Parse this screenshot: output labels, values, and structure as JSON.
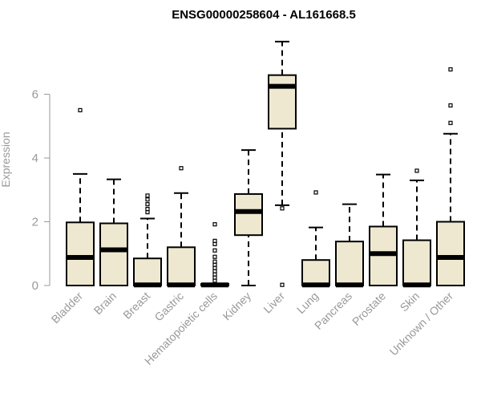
{
  "chart_data": {
    "type": "box",
    "title": "ENSG00000258604 - AL161668.5",
    "ylabel": "Expression",
    "xlabel": "",
    "ylim": [
      0,
      7.9
    ],
    "yticks": [
      0,
      2,
      4,
      6
    ],
    "grid": false,
    "box_fill": "#EEE8D0",
    "stroke_color": "#000000",
    "label_color": "#999999",
    "categories": [
      "Bladder",
      "Brain",
      "Breast",
      "Gastric",
      "Hematopoietic cells",
      "Kidney",
      "Liver",
      "Lung",
      "Pancreas",
      "Prostate",
      "Skin",
      "Unknown / Other"
    ],
    "boxes": [
      {
        "q1": 0.0,
        "median": 0.88,
        "q3": 1.98,
        "whisker_low": 0.0,
        "whisker_high": 3.5,
        "outliers": [
          5.5
        ]
      },
      {
        "q1": 0.0,
        "median": 1.12,
        "q3": 1.95,
        "whisker_low": 0.0,
        "whisker_high": 3.33,
        "outliers": []
      },
      {
        "q1": 0.0,
        "median": 0.02,
        "q3": 0.85,
        "whisker_low": 0.0,
        "whisker_high": 2.1,
        "outliers": [
          2.3,
          2.4,
          2.55,
          2.7,
          2.82
        ]
      },
      {
        "q1": 0.0,
        "median": 0.02,
        "q3": 1.2,
        "whisker_low": 0.0,
        "whisker_high": 2.9,
        "outliers": [
          3.68
        ]
      },
      {
        "q1": 0.0,
        "median": 0.02,
        "q3": 0.05,
        "whisker_low": 0.0,
        "whisker_high": 0.05,
        "outliers": [
          0.15,
          0.25,
          0.35,
          0.45,
          0.55,
          0.65,
          0.75,
          0.9,
          1.1,
          1.3,
          1.4,
          1.92
        ]
      },
      {
        "q1": 1.58,
        "median": 2.32,
        "q3": 2.87,
        "whisker_low": 0.0,
        "whisker_high": 4.25,
        "outliers": []
      },
      {
        "q1": 4.92,
        "median": 6.25,
        "q3": 6.6,
        "whisker_low": 2.52,
        "whisker_high": 7.65,
        "outliers": [
          2.42,
          0.02
        ]
      },
      {
        "q1": 0.0,
        "median": 0.02,
        "q3": 0.8,
        "whisker_low": 0.0,
        "whisker_high": 1.82,
        "outliers": [
          2.92
        ]
      },
      {
        "q1": 0.0,
        "median": 0.02,
        "q3": 1.38,
        "whisker_low": 0.0,
        "whisker_high": 2.55,
        "outliers": []
      },
      {
        "q1": 0.0,
        "median": 1.0,
        "q3": 1.85,
        "whisker_low": 0.0,
        "whisker_high": 3.48,
        "outliers": []
      },
      {
        "q1": 0.0,
        "median": 0.02,
        "q3": 1.42,
        "whisker_low": 0.0,
        "whisker_high": 3.3,
        "outliers": [
          3.6
        ]
      },
      {
        "q1": 0.0,
        "median": 0.88,
        "q3": 2.0,
        "whisker_low": 0.0,
        "whisker_high": 4.76,
        "outliers": [
          5.1,
          5.65,
          6.78
        ]
      }
    ]
  }
}
